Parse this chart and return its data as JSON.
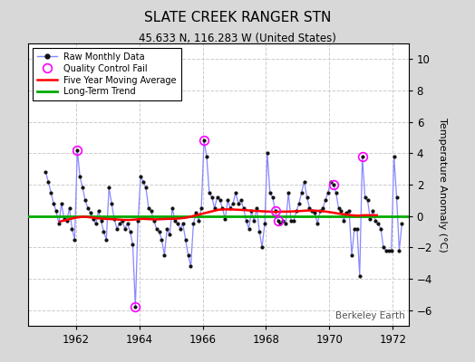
{
  "title": "SLATE CREEK RANGER STN",
  "subtitle": "45.633 N, 116.283 W (United States)",
  "ylabel": "Temperature Anomaly (°C)",
  "watermark": "Berkeley Earth",
  "ylim": [
    -7,
    11
  ],
  "yticks": [
    -6,
    -4,
    -2,
    0,
    2,
    4,
    6,
    8,
    10
  ],
  "xlim": [
    1960.5,
    1972.5
  ],
  "xticks": [
    1962,
    1964,
    1966,
    1968,
    1970,
    1972
  ],
  "fig_bg_color": "#d8d8d8",
  "plot_bg_color": "#ffffff",
  "raw_color": "#8888ff",
  "marker_color": "#111111",
  "ma_color": "red",
  "trend_color": "#00aa00",
  "qc_color": "magenta",
  "months": [
    1961.042,
    1961.125,
    1961.208,
    1961.292,
    1961.375,
    1961.458,
    1961.542,
    1961.625,
    1961.708,
    1961.792,
    1961.875,
    1961.958,
    1962.042,
    1962.125,
    1962.208,
    1962.292,
    1962.375,
    1962.458,
    1962.542,
    1962.625,
    1962.708,
    1962.792,
    1962.875,
    1962.958,
    1963.042,
    1963.125,
    1963.208,
    1963.292,
    1963.375,
    1963.458,
    1963.542,
    1963.625,
    1963.708,
    1963.792,
    1963.875,
    1963.958,
    1964.042,
    1964.125,
    1964.208,
    1964.292,
    1964.375,
    1964.458,
    1964.542,
    1964.625,
    1964.708,
    1964.792,
    1964.875,
    1964.958,
    1965.042,
    1965.125,
    1965.208,
    1965.292,
    1965.375,
    1965.458,
    1965.542,
    1965.625,
    1965.708,
    1965.792,
    1965.875,
    1965.958,
    1966.042,
    1966.125,
    1966.208,
    1966.292,
    1966.375,
    1966.458,
    1966.542,
    1966.625,
    1966.708,
    1966.792,
    1966.875,
    1966.958,
    1967.042,
    1967.125,
    1967.208,
    1967.292,
    1967.375,
    1967.458,
    1967.542,
    1967.625,
    1967.708,
    1967.792,
    1967.875,
    1967.958,
    1968.042,
    1968.125,
    1968.208,
    1968.292,
    1968.375,
    1968.458,
    1968.542,
    1968.625,
    1968.708,
    1968.792,
    1968.875,
    1968.958,
    1969.042,
    1969.125,
    1969.208,
    1969.292,
    1969.375,
    1969.458,
    1969.542,
    1969.625,
    1969.708,
    1969.792,
    1969.875,
    1969.958,
    1970.042,
    1970.125,
    1970.208,
    1970.292,
    1970.375,
    1970.458,
    1970.542,
    1970.625,
    1970.708,
    1970.792,
    1970.875,
    1970.958,
    1971.042,
    1971.125,
    1971.208,
    1971.292,
    1971.375,
    1971.458,
    1971.542,
    1971.625,
    1971.708,
    1971.792,
    1971.875,
    1971.958,
    1972.042,
    1972.125,
    1972.208,
    1972.292
  ],
  "anomalies": [
    2.8,
    2.2,
    1.5,
    0.8,
    0.3,
    -0.5,
    0.8,
    -0.2,
    -0.3,
    0.5,
    -0.8,
    -1.5,
    4.2,
    2.5,
    1.8,
    1.0,
    0.5,
    0.2,
    -0.2,
    -0.5,
    0.3,
    -0.3,
    -1.0,
    -1.5,
    1.8,
    0.8,
    -0.2,
    -0.8,
    -0.5,
    -0.3,
    -0.8,
    -0.5,
    -1.0,
    -1.8,
    -5.8,
    -0.3,
    2.5,
    2.2,
    1.8,
    0.5,
    0.3,
    -0.3,
    -0.8,
    -1.0,
    -1.5,
    -2.5,
    -0.8,
    -1.2,
    0.5,
    -0.3,
    -0.5,
    -0.8,
    -0.5,
    -1.5,
    -2.5,
    -3.2,
    -0.5,
    0.2,
    -0.3,
    0.5,
    4.8,
    3.8,
    1.5,
    1.2,
    0.5,
    1.2,
    1.0,
    0.5,
    -0.2,
    1.0,
    0.5,
    0.8,
    1.5,
    0.8,
    1.0,
    0.5,
    -0.3,
    -0.8,
    0.3,
    -0.3,
    0.5,
    -1.0,
    -2.0,
    -0.5,
    4.0,
    1.5,
    1.2,
    0.3,
    -0.3,
    -0.5,
    -0.3,
    -0.5,
    1.5,
    -0.3,
    -0.3,
    0.3,
    0.8,
    1.5,
    2.2,
    1.2,
    0.5,
    0.3,
    0.2,
    -0.5,
    0.3,
    0.5,
    1.0,
    1.5,
    2.2,
    2.0,
    1.5,
    0.5,
    0.3,
    -0.3,
    0.2,
    0.3,
    -2.5,
    -0.8,
    -0.8,
    -3.8,
    3.8,
    1.2,
    1.0,
    -0.2,
    0.3,
    -0.3,
    -0.5,
    -0.8,
    -2.0,
    -2.2,
    -2.2,
    -2.2,
    3.8,
    1.2,
    -2.2,
    -0.5
  ],
  "qc_indices": [
    12,
    34,
    60,
    87,
    88,
    109,
    120
  ],
  "ma_x": [
    1961.5,
    1961.6,
    1961.7,
    1961.8,
    1961.9,
    1962.0,
    1962.1,
    1962.2,
    1962.3,
    1962.5,
    1962.7,
    1962.9,
    1963.1,
    1963.3,
    1963.5,
    1963.7,
    1963.9,
    1964.1,
    1964.3,
    1964.5,
    1964.7,
    1964.9,
    1965.1,
    1965.3,
    1965.5,
    1965.7,
    1965.9,
    1966.1,
    1966.3,
    1966.5,
    1966.7,
    1966.9,
    1967.1,
    1967.3,
    1967.5,
    1967.7,
    1967.9,
    1968.1,
    1968.3,
    1968.5,
    1968.7,
    1968.9,
    1969.1,
    1969.3,
    1969.5,
    1969.7,
    1969.9,
    1970.1,
    1970.3,
    1970.5,
    1970.7,
    1970.9,
    1971.1,
    1971.3,
    1971.5
  ],
  "ma_y": [
    -0.35,
    -0.3,
    -0.25,
    -0.2,
    -0.15,
    -0.1,
    -0.08,
    -0.05,
    -0.05,
    -0.1,
    -0.15,
    -0.18,
    -0.2,
    -0.22,
    -0.25,
    -0.25,
    -0.22,
    -0.18,
    -0.2,
    -0.22,
    -0.2,
    -0.18,
    -0.18,
    -0.15,
    -0.1,
    0.0,
    0.1,
    0.2,
    0.3,
    0.4,
    0.42,
    0.42,
    0.4,
    0.38,
    0.35,
    0.32,
    0.3,
    0.28,
    0.25,
    0.28,
    0.28,
    0.3,
    0.32,
    0.35,
    0.35,
    0.32,
    0.28,
    0.22,
    0.15,
    0.1,
    0.05,
    0.02,
    0.05,
    0.05,
    0.05
  ]
}
